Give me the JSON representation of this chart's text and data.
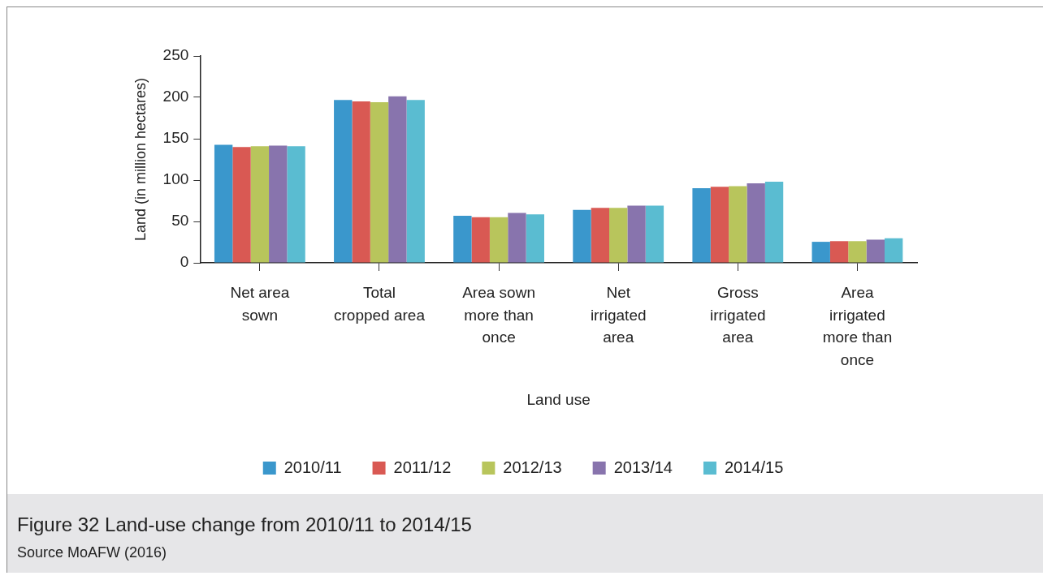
{
  "chart_data": {
    "type": "bar",
    "title": "Figure 32  Land-use change from 2010/11 to 2014/15",
    "annotations": [
      "Source  MoAFW (2016)"
    ],
    "xlabel": "Land use",
    "ylabel": "Land (in million hectares)",
    "categories": [
      "Net area sown",
      "Total cropped area",
      "Area sown more than once",
      "Net irrigated area",
      "Gross irrigated area",
      "Area irrigated more than once"
    ],
    "series": [
      {
        "name": "2010/11",
        "color": "#3a97cc",
        "values": [
          142.6,
          196.9,
          56.9,
          63.9,
          90.1,
          25.4
        ]
      },
      {
        "name": "2011/12",
        "color": "#d95953",
        "values": [
          140,
          195.1,
          55.1,
          66.5,
          91.9,
          26.2
        ]
      },
      {
        "name": "2012/13",
        "color": "#b8c55c",
        "values": [
          141,
          194.2,
          55.1,
          66.5,
          92.7,
          26.2
        ]
      },
      {
        "name": "2013/14",
        "color": "#8874ad",
        "values": [
          141.7,
          201.2,
          60.4,
          69.1,
          96.2,
          28
        ]
      },
      {
        "name": "2014/15",
        "color": "#5abcd1",
        "values": [
          141,
          196.9,
          58.6,
          69.1,
          98,
          29.7
        ]
      }
    ],
    "ylim": [
      0,
      250
    ],
    "yticks": [
      0,
      50,
      100,
      150,
      200,
      250
    ],
    "grid": false,
    "legend": "bottom"
  }
}
